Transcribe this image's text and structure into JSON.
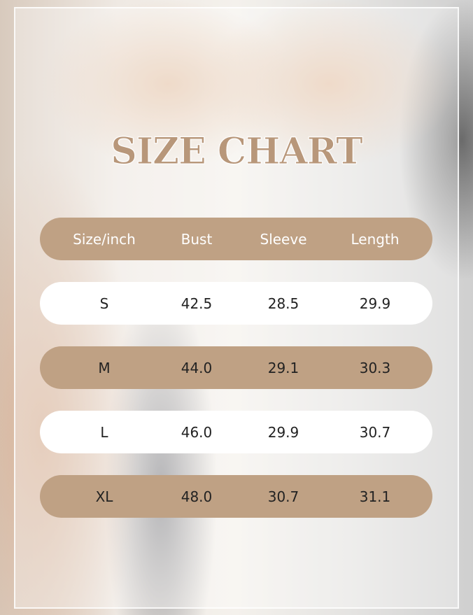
{
  "title": "SIZE CHART",
  "colors": {
    "accent": "#bfa184",
    "row_alt": "#ffffff"
  },
  "table": {
    "headers": [
      "Size/inch",
      "Bust",
      "Sleeve",
      "Length"
    ],
    "rows": [
      [
        "S",
        "42.5",
        "28.5",
        "29.9"
      ],
      [
        "M",
        "44.0",
        "29.1",
        "30.3"
      ],
      [
        "L",
        "46.0",
        "29.9",
        "30.7"
      ],
      [
        "XL",
        "48.0",
        "30.7",
        "31.1"
      ]
    ]
  }
}
